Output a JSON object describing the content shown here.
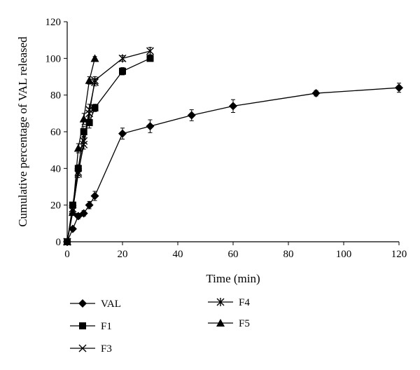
{
  "chart_data": {
    "type": "line",
    "xlabel": "Time (min)",
    "ylabel": "Cumulative  percentage of VAL released",
    "xlim": [
      0,
      120
    ],
    "ylim": [
      0,
      120
    ],
    "xticks": [
      0,
      20,
      40,
      60,
      80,
      100,
      120
    ],
    "yticks": [
      0,
      20,
      40,
      60,
      80,
      100,
      120
    ],
    "grid": false,
    "legend_position": "bottom-left",
    "series": [
      {
        "name": "VAL",
        "marker": "diamond",
        "color": "#000000",
        "x": [
          0,
          2,
          4,
          6,
          8,
          10,
          20,
          30,
          45,
          60,
          90,
          120
        ],
        "y": [
          0,
          7,
          14,
          15.5,
          20,
          25,
          59,
          63,
          69,
          74,
          81,
          84
        ],
        "err": [
          0,
          1,
          1.5,
          1.5,
          2,
          2.5,
          3,
          3.5,
          3,
          3.5,
          1.5,
          2.5
        ]
      },
      {
        "name": "F1",
        "marker": "square",
        "color": "#000000",
        "x": [
          0,
          2,
          4,
          6,
          8,
          10,
          20,
          30
        ],
        "y": [
          0,
          20,
          40,
          60,
          65,
          73,
          93,
          100
        ],
        "err": [
          0,
          1.5,
          2,
          3,
          3,
          2,
          2,
          1.5
        ]
      },
      {
        "name": "F3",
        "marker": "x",
        "color": "#000000",
        "x": [
          0,
          2,
          4,
          6,
          8,
          10
        ],
        "y": [
          0,
          18,
          37,
          55,
          72,
          87
        ],
        "err": [
          0,
          1.5,
          2,
          2.5,
          3,
          2
        ]
      },
      {
        "name": "F4",
        "marker": "asterisk",
        "color": "#000000",
        "x": [
          0,
          2,
          4,
          6,
          8,
          10,
          20,
          30
        ],
        "y": [
          0,
          17,
          38,
          53,
          70,
          88,
          100,
          104
        ],
        "err": [
          0,
          1.5,
          2,
          2.5,
          3,
          2,
          1.5,
          2
        ]
      },
      {
        "name": "F5",
        "marker": "triangle",
        "color": "#000000",
        "x": [
          0,
          2,
          4,
          6,
          8,
          10
        ],
        "y": [
          0,
          16,
          51,
          67,
          88,
          100
        ],
        "err": [
          0,
          1.5,
          2.5,
          3,
          2,
          1
        ]
      }
    ]
  }
}
